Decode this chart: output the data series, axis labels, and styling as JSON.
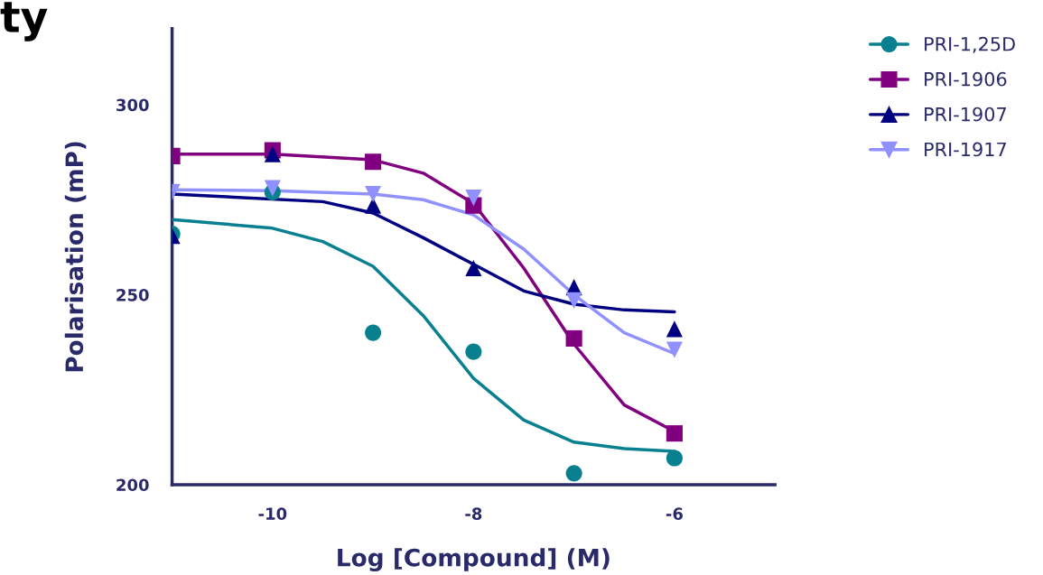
{
  "chart_data": {
    "type": "scatter",
    "xlabel": "Log [Compound] (M)",
    "ylabel": "Polarisation (mP)",
    "annotations": [
      "ty"
    ],
    "xlim": [
      -11,
      -5
    ],
    "xticks": [
      -10,
      -8,
      -6
    ],
    "ylim": [
      200,
      320
    ],
    "yticks": [
      200,
      250,
      300
    ],
    "grid": false,
    "legend": "top right",
    "series": [
      {
        "name": "PRI-1,25D",
        "color": "#088090",
        "marker": "circle",
        "x": [
          -11,
          -10,
          -9,
          -8,
          -7,
          -6
        ],
        "values": [
          266,
          277,
          240,
          235,
          203,
          207
        ]
      },
      {
        "name": "PRI-1906",
        "color": "#800080",
        "marker": "square",
        "x": [
          -11,
          -10,
          -9,
          -8,
          -7,
          -6
        ],
        "values": [
          286.5,
          288,
          285,
          273.5,
          238.5,
          213.5
        ]
      },
      {
        "name": "PRI-1907",
        "color": "#000080",
        "marker": "triangle",
        "x": [
          -11,
          -10,
          -9,
          -8,
          -7,
          -6
        ],
        "values": [
          265.5,
          287,
          273.5,
          257,
          252,
          241
        ]
      },
      {
        "name": "PRI-1917",
        "color": "#9090ff",
        "marker": "triangle_down",
        "x": [
          -11,
          -10,
          -9,
          -8,
          -7,
          -6
        ],
        "values": [
          277,
          278,
          276.5,
          275.5,
          248.5,
          235.5
        ]
      },
      {
        "type": "line",
        "color": "#088090",
        "marker": "none",
        "x": [
          -11,
          -10,
          -9.5,
          -9,
          -8.5,
          -8,
          -7.5,
          -7,
          -6.5,
          -6
        ],
        "values": [
          269.8,
          267.5,
          264,
          257.5,
          244.5,
          228,
          217,
          211.2,
          209.5,
          208.8
        ]
      },
      {
        "type": "line",
        "color": "#800080",
        "marker": "none",
        "x": [
          -11,
          -10,
          -9,
          -8.5,
          -8,
          -7.5,
          -7,
          -6.5,
          -6
        ],
        "values": [
          287,
          287,
          285.5,
          282,
          274,
          257,
          237,
          221,
          214
        ]
      },
      {
        "type": "line",
        "color": "#000080",
        "marker": "none",
        "x": [
          -11,
          -9.5,
          -9,
          -8.5,
          -8,
          -7.5,
          -7,
          -6.5,
          -6
        ],
        "values": [
          276.5,
          274.5,
          271.5,
          265,
          258,
          251,
          247.5,
          246,
          245.5
        ]
      },
      {
        "type": "line",
        "color": "#9090ff",
        "marker": "none",
        "x": [
          -11,
          -10,
          -9,
          -8.5,
          -8,
          -7.5,
          -7,
          -6.5,
          -6
        ],
        "values": [
          277.6,
          277.4,
          276.5,
          275,
          271,
          262,
          250,
          240,
          234.5
        ]
      }
    ]
  }
}
